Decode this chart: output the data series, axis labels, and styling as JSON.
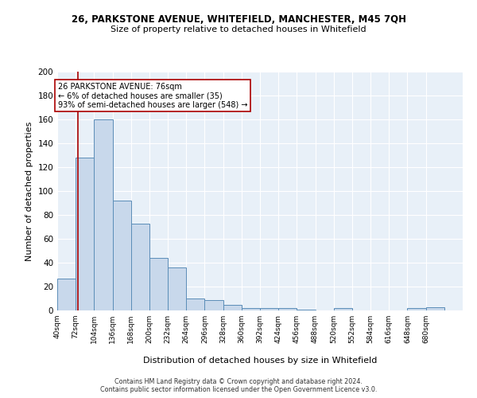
{
  "title1": "26, PARKSTONE AVENUE, WHITEFIELD, MANCHESTER, M45 7QH",
  "title2": "Size of property relative to detached houses in Whitefield",
  "xlabel": "Distribution of detached houses by size in Whitefield",
  "ylabel": "Number of detached properties",
  "bar_values": [
    27,
    128,
    160,
    92,
    73,
    44,
    36,
    10,
    9,
    5,
    2,
    2,
    2,
    1,
    0,
    2,
    0,
    0,
    0,
    2,
    3
  ],
  "bin_edges": [
    40,
    72,
    104,
    136,
    168,
    200,
    232,
    264,
    296,
    328,
    360,
    392,
    424,
    456,
    488,
    520,
    552,
    584,
    616,
    648,
    680,
    712
  ],
  "bin_labels": [
    "40sqm",
    "72sqm",
    "104sqm",
    "136sqm",
    "168sqm",
    "200sqm",
    "232sqm",
    "264sqm",
    "296sqm",
    "328sqm",
    "360sqm",
    "392sqm",
    "424sqm",
    "456sqm",
    "488sqm",
    "520sqm",
    "552sqm",
    "584sqm",
    "616sqm",
    "648sqm",
    "680sqm"
  ],
  "bar_color": "#c8d8eb",
  "bar_edge_color": "#5b8db8",
  "vline_x": 76,
  "vline_color": "#aa0000",
  "annotation_text": "26 PARKSTONE AVENUE: 76sqm\n← 6% of detached houses are smaller (35)\n93% of semi-detached houses are larger (548) →",
  "annotation_box_color": "#ffffff",
  "annotation_box_edge": "#aa0000",
  "ylim": [
    0,
    200
  ],
  "yticks": [
    0,
    20,
    40,
    60,
    80,
    100,
    120,
    140,
    160,
    180,
    200
  ],
  "footnote": "Contains HM Land Registry data © Crown copyright and database right 2024.\nContains public sector information licensed under the Open Government Licence v3.0.",
  "bg_color": "#e8f0f8",
  "fig_width": 6.0,
  "fig_height": 5.0,
  "dpi": 100
}
